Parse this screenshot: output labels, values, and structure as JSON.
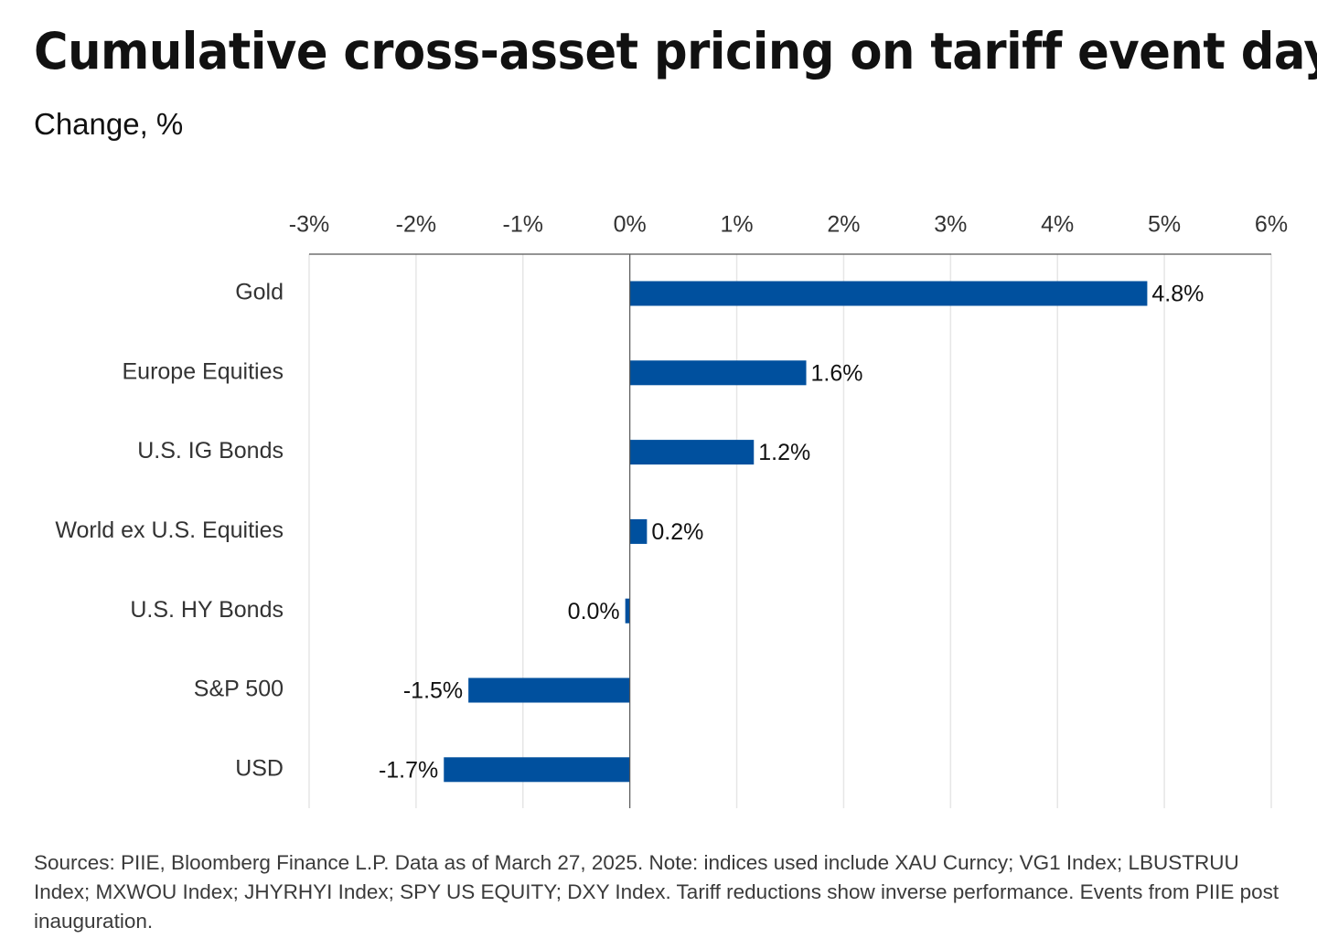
{
  "header": {
    "title": "Cumulative cross-asset pricing on tariff event days",
    "subtitle": "Change, %"
  },
  "footnote": "Sources: PIIE, Bloomberg Finance L.P. Data as of March 27, 2025. Note: indices used include XAU Curncy; VG1 Index; LBUSTRUU Index; MXWOU Index; JHYRHYI Index; SPY US EQUITY; DXY Index. Tariff reductions show inverse performance. Events from PIIE post inauguration.",
  "colors": {
    "bar": "#00509e",
    "grid": "#e6e6e6",
    "axis": "#555555"
  },
  "chart_data": {
    "type": "bar",
    "orientation": "horizontal",
    "title": "Cumulative cross-asset pricing on tariff event days",
    "subtitle": "Change, %",
    "xlabel": "",
    "ylabel": "",
    "xlim": [
      -3,
      6
    ],
    "ticks": [
      -3,
      -2,
      -1,
      0,
      1,
      2,
      3,
      4,
      5,
      6
    ],
    "tick_labels": [
      "-3%",
      "-2%",
      "-1%",
      "0%",
      "1%",
      "2%",
      "3%",
      "4%",
      "5%",
      "6%"
    ],
    "axis_position": "top",
    "grid": true,
    "categories": [
      "Gold",
      "Europe Equities",
      "U.S. IG Bonds",
      "World ex U.S. Equities",
      "U.S. HY Bonds",
      "S&P 500",
      "USD"
    ],
    "values": [
      4.84,
      1.65,
      1.16,
      0.16,
      -0.04,
      -1.51,
      -1.74
    ],
    "data_labels": [
      "4.8%",
      "1.6%",
      "1.2%",
      "0.2%",
      "0.0%",
      "-1.5%",
      "-1.7%"
    ]
  }
}
